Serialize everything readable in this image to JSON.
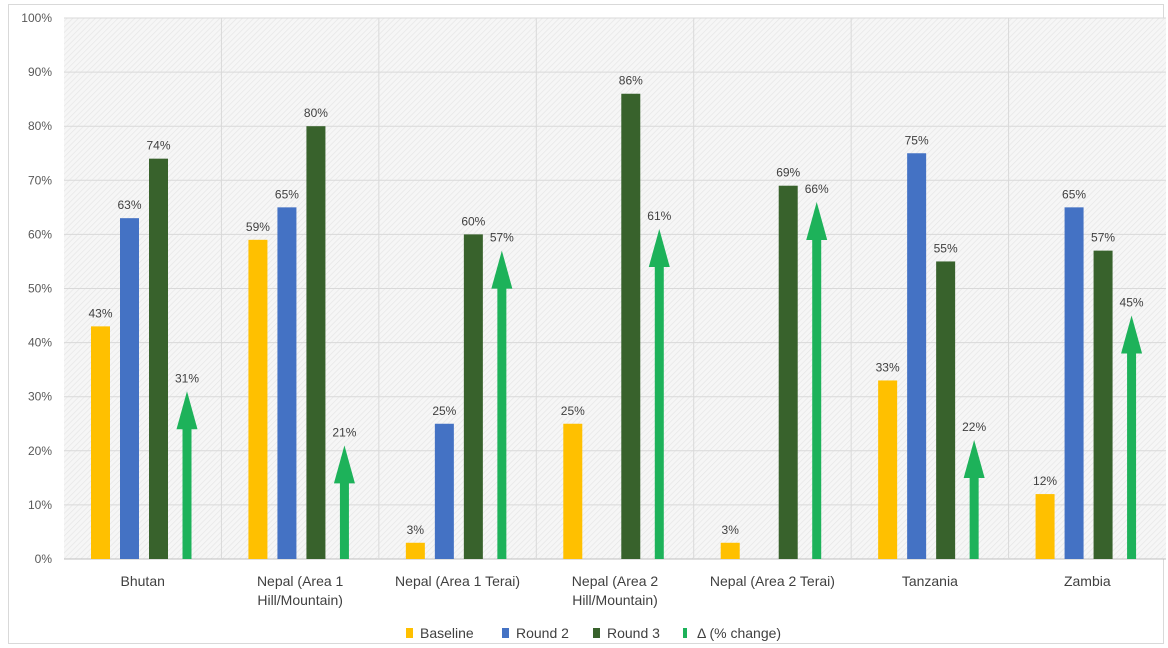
{
  "chart_data": {
    "type": "bar",
    "title": "",
    "xlabel": "",
    "ylabel": "",
    "ylim": [
      0,
      100
    ],
    "y_ticks": [
      "0%",
      "10%",
      "20%",
      "30%",
      "40%",
      "50%",
      "60%",
      "70%",
      "80%",
      "90%",
      "100%"
    ],
    "grid": true,
    "legend_position": "bottom",
    "categories": [
      [
        "Bhutan"
      ],
      [
        "Nepal (Area 1",
        "Hill/Mountain)"
      ],
      [
        "Nepal (Area 1 Terai)"
      ],
      [
        "Nepal (Area 2",
        "Hill/Mountain)"
      ],
      [
        "Nepal (Area 2 Terai)"
      ],
      [
        "Tanzania"
      ],
      [
        "Zambia"
      ]
    ],
    "series": [
      {
        "name": "Baseline",
        "color": "#ffc000",
        "mark": "bar",
        "values": [
          43,
          59,
          3,
          25,
          3,
          33,
          12
        ],
        "labels": [
          "43%",
          "59%",
          "3%",
          "25%",
          "3%",
          "33%",
          "12%"
        ]
      },
      {
        "name": "Round 2",
        "color": "#4472c4",
        "mark": "bar",
        "values": [
          63,
          65,
          25,
          null,
          null,
          75,
          65
        ],
        "labels": [
          "63%",
          "65%",
          "25%",
          "",
          "",
          "75%",
          "65%"
        ]
      },
      {
        "name": "Round 3",
        "color": "#38622c",
        "mark": "bar",
        "values": [
          74,
          80,
          60,
          86,
          69,
          55,
          57
        ],
        "labels": [
          "74%",
          "80%",
          "60%",
          "86%",
          "69%",
          "55%",
          "57%"
        ]
      },
      {
        "name": "Δ (% change)",
        "color": "#1db25a",
        "mark": "arrow",
        "values": [
          31,
          21,
          57,
          61,
          66,
          22,
          45
        ],
        "labels": [
          "31%",
          "21%",
          "57%",
          "61%",
          "66%",
          "22%",
          "45%"
        ]
      }
    ]
  }
}
